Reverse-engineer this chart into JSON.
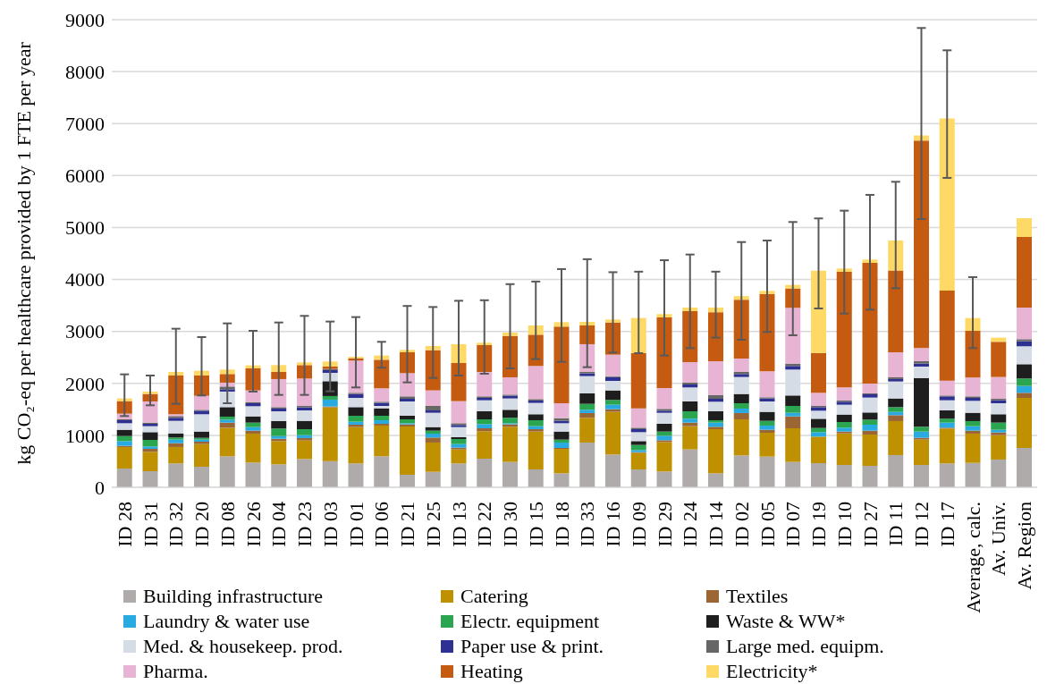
{
  "chart_data": {
    "type": "bar",
    "stacked": true,
    "ylabel": "kg CO₂-eq per healthcare provided by 1 FTE per year",
    "categories": [
      "ID 28",
      "ID 31",
      "ID 32",
      "ID 20",
      "ID 08",
      "ID 26",
      "ID 04",
      "ID 23",
      "ID 03",
      "ID 01",
      "ID 06",
      "ID 21",
      "ID 25",
      "ID 13",
      "ID 22",
      "ID 30",
      "ID 15",
      "ID 18",
      "ID 33",
      "ID 16",
      "ID 09",
      "ID 29",
      "ID 24",
      "ID 14",
      "ID 02",
      "ID 05",
      "ID 07",
      "ID 19",
      "ID 10",
      "ID 27",
      "ID 11",
      "ID 12",
      "ID 17",
      "Average, calc.",
      "Av. Univ.",
      "Av. Region"
    ],
    "ylim": [
      0,
      9000
    ],
    "yticks": [
      0,
      1000,
      2000,
      3000,
      4000,
      5000,
      6000,
      7000,
      8000,
      9000
    ],
    "grid": "y",
    "legend": "bottom",
    "series": [
      {
        "name": "Building infrastructure",
        "color": "#afabab",
        "values": [
          361,
          310,
          459,
          396,
          597,
          476,
          442,
          545,
          505,
          459,
          597,
          241,
          298,
          459,
          551,
          488,
          344,
          270,
          861,
          631,
          344,
          304,
          729,
          270,
          614,
          591,
          488,
          465,
          430,
          413,
          620,
          430,
          459,
          470,
          534,
          757
        ]
      },
      {
        "name": "Catering",
        "color": "#bf9000",
        "values": [
          414,
          373,
          316,
          436,
          550,
          557,
          447,
          356,
          1033,
          700,
          591,
          929,
          563,
          270,
          528,
          677,
          729,
          470,
          476,
          821,
          316,
          568,
          447,
          849,
          694,
          459,
          648,
          510,
          608,
          602,
          654,
          488,
          671,
          563,
          470,
          964
        ]
      },
      {
        "name": "Textiles",
        "color": "#9c6634",
        "values": [
          22,
          57,
          74,
          46,
          98,
          57,
          46,
          46,
          17,
          46,
          34,
          41,
          97,
          34,
          57,
          46,
          46,
          17,
          92,
          51,
          17,
          34,
          69,
          46,
          121,
          57,
          229,
          null,
          35,
          75,
          114,
          34,
          17,
          57,
          52,
          98
        ]
      },
      {
        "name": "Laundry & water use",
        "color": "#29abe2",
        "values": [
          92,
          46,
          69,
          40,
          57,
          69,
          52,
          57,
          132,
          57,
          69,
          22,
          75,
          69,
          80,
          22,
          57,
          104,
          63,
          86,
          40,
          86,
          75,
          80,
          86,
          81,
          69,
          86,
          74,
          115,
          63,
          121,
          98,
          86,
          51,
          132
        ]
      },
      {
        "name": "Electr. equipment",
        "color": "#2aa650",
        "values": [
          98,
          126,
          40,
          34,
          58,
          86,
          143,
          115,
          69,
          115,
          86,
          75,
          57,
          97,
          92,
          104,
          115,
          57,
          114,
          92,
          98,
          81,
          143,
          46,
          103,
          91,
          132,
          80,
          109,
          97,
          92,
          92,
          75,
          98,
          138,
          143
        ]
      },
      {
        "name": "Waste & WW*",
        "color": "#1e1e1e",
        "values": [
          120,
          149,
          80,
          121,
          183,
          120,
          144,
          160,
          286,
          166,
          143,
          69,
          69,
          35,
          155,
          155,
          115,
          155,
          201,
          184,
          74,
          149,
          189,
          172,
          178,
          173,
          201,
          178,
          144,
          138,
          167,
          935,
          160,
          160,
          161,
          275
        ]
      },
      {
        "name": "Med. & housekeep. prod.",
        "color": "#d6dce5",
        "values": [
          126,
          115,
          241,
          333,
          299,
          195,
          189,
          201,
          161,
          178,
          46,
          275,
          275,
          195,
          212,
          218,
          218,
          160,
          333,
          183,
          172,
          212,
          270,
          184,
          327,
          200,
          499,
          155,
          189,
          287,
          327,
          223,
          195,
          230,
          212,
          345
        ]
      },
      {
        "name": "Paper use & print.",
        "color": "#2e3192",
        "values": [
          58,
          46,
          58,
          68,
          45,
          58,
          52,
          58,
          52,
          75,
          58,
          52,
          46,
          40,
          46,
          51,
          46,
          46,
          52,
          75,
          58,
          40,
          57,
          57,
          57,
          58,
          69,
          69,
          58,
          63,
          46,
          58,
          75,
          57,
          57,
          97
        ]
      },
      {
        "name": "Large med. equipm.",
        "color": "#666666",
        "values": [
          17,
          23,
          34,
          18,
          52,
          23,
          28,
          28,
          23,
          23,
          23,
          46,
          86,
          34,
          29,
          23,
          28,
          52,
          28,
          17,
          28,
          35,
          35,
          69,
          40,
          23,
          46,
          23,
          28,
          17,
          34,
          46,
          17,
          29,
          29,
          40
        ]
      },
      {
        "name": "Pharma.",
        "color": "#e8b4d4",
        "values": [
          109,
          407,
          35,
          269,
          75,
          224,
          540,
          528,
          0,
          619,
          258,
          447,
          299,
          425,
          470,
          333,
          637,
          287,
          534,
          413,
          373,
          401,
          396,
          654,
          258,
          499,
          1073,
          252,
          247,
          189,
          482,
          252,
          287,
          361,
          419,
          608
        ]
      },
      {
        "name": "Heating",
        "color": "#c55a11",
        "values": [
          241,
          144,
          745,
          390,
          166,
          424,
          137,
          258,
          46,
          46,
          550,
          402,
          774,
          734,
          517,
          797,
          602,
          1474,
          361,
          619,
          1062,
          1360,
          980,
          943,
          1132,
          1488,
          373,
          769,
          2226,
          2324,
          1572,
          3993,
          1732,
          901,
          677,
          1360
        ]
      },
      {
        "name": "Electricity*",
        "color": "#ffd966",
        "values": [
          52,
          46,
          69,
          92,
          86,
          57,
          132,
          52,
          97,
          29,
          81,
          46,
          80,
          362,
          45,
          63,
          178,
          86,
          69,
          58,
          677,
          63,
          70,
          90,
          70,
          60,
          68,
          1583,
          63,
          63,
          579,
          98,
          3314,
          247,
          80,
          362
        ],
        "errors": [
          [
            1371,
            2174
          ],
          [
            1578,
            2151
          ],
          [
            1606,
            3052
          ],
          [
            1767,
            2891
          ],
          [
            1618,
            3155
          ],
          [
            1842,
            3012
          ],
          [
            1778,
            3172
          ],
          [
            1778,
            3299
          ],
          [
            1847,
            3190
          ],
          [
            1922,
            3276
          ],
          [
            2301,
            2800
          ],
          [
            2019,
            3490
          ],
          [
            2105,
            3470
          ],
          [
            2151,
            3590
          ],
          [
            2186,
            3600
          ],
          [
            2289,
            3910
          ],
          [
            2467,
            3960
          ],
          [
            2415,
            4200
          ],
          [
            2312,
            4390
          ],
          [
            2593,
            4140
          ],
          [
            2582,
            4150
          ],
          [
            2536,
            4370
          ],
          [
            2679,
            4480
          ],
          [
            2880,
            4150
          ],
          [
            2840,
            4720
          ],
          [
            2989,
            4750
          ],
          [
            2926,
            5106
          ],
          [
            3442,
            5175
          ],
          [
            3345,
            5324
          ],
          [
            3419,
            5628
          ],
          [
            3832,
            5880
          ],
          [
            5163,
            8840
          ],
          [
            5955,
            8410
          ],
          [
            2679,
            4045
          ],
          null,
          null
        ]
      }
    ]
  }
}
